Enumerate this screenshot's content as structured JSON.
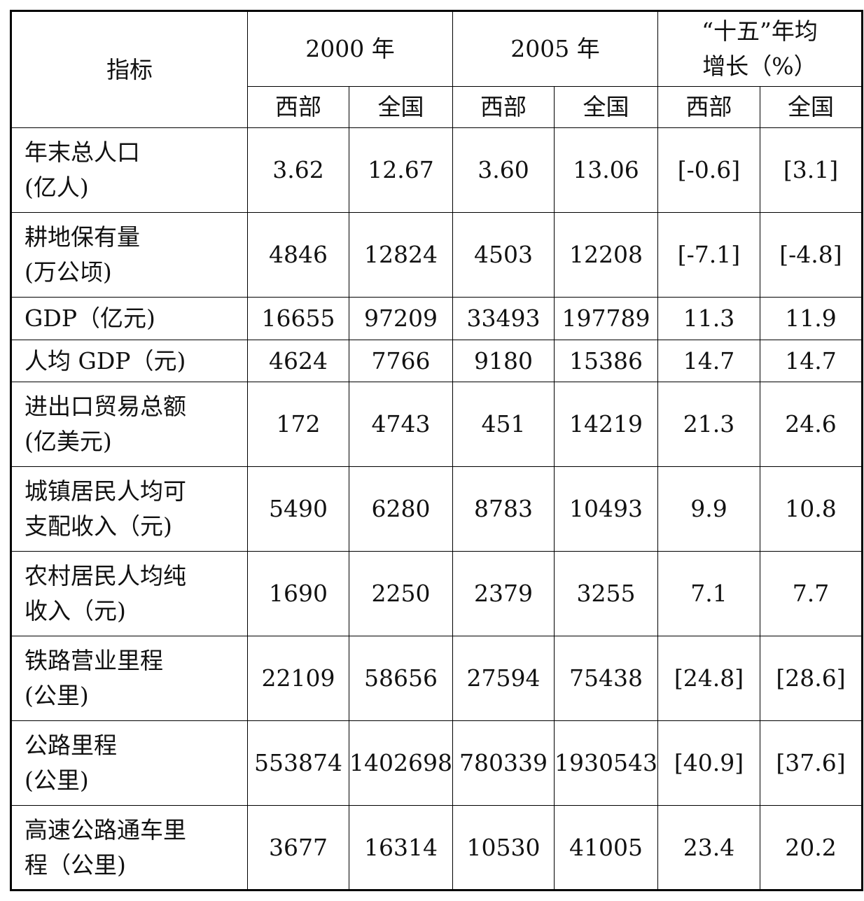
{
  "header": {
    "indicator": "指标",
    "year_2000": "2000 年",
    "year_2005": "2005 年",
    "growth": [
      "“十五”年均",
      "增长（%）"
    ],
    "subheaders": [
      "西部",
      "全国",
      "西部",
      "全国",
      "西部",
      "全国"
    ]
  },
  "rows": [
    {
      "label": [
        "年末总人口",
        "(亿人)"
      ],
      "values": [
        "3.62",
        "12.67",
        "3.60",
        "13.06",
        "[-0.6]",
        "[3.1]"
      ]
    },
    {
      "label": [
        "耕地保有量",
        "(万公顷)"
      ],
      "values": [
        "4846",
        "12824",
        "4503",
        "12208",
        "[-7.1]",
        "[-4.8]"
      ]
    },
    {
      "label": [
        "GDP（亿元)"
      ],
      "values": [
        "16655",
        "97209",
        "33493",
        "197789",
        "11.3",
        "11.9"
      ]
    },
    {
      "label": [
        "人均 GDP（元)"
      ],
      "values": [
        "4624",
        "7766",
        "9180",
        "15386",
        "14.7",
        "14.7"
      ]
    },
    {
      "label": [
        "进出口贸易总额",
        "(亿美元)"
      ],
      "values": [
        "172",
        "4743",
        "451",
        "14219",
        "21.3",
        "24.6"
      ]
    },
    {
      "label": [
        "城镇居民人均可",
        "支配收入（元)"
      ],
      "values": [
        "5490",
        "6280",
        "8783",
        "10493",
        "9.9",
        "10.8"
      ]
    },
    {
      "label": [
        "农村居民人均纯",
        "收入（元)"
      ],
      "values": [
        "1690",
        "2250",
        "2379",
        "3255",
        "7.1",
        "7.7"
      ]
    },
    {
      "label": [
        "铁路营业里程",
        "(公里)"
      ],
      "values": [
        "22109",
        "58656",
        "27594",
        "75438",
        "[24.8]",
        "[28.6]"
      ]
    },
    {
      "label": [
        "公路里程",
        "(公里)"
      ],
      "values": [
        "553874",
        "1402698",
        "780339",
        "1930543",
        "[40.9]",
        "[37.6]"
      ]
    },
    {
      "label": [
        "高速公路通车里",
        "程（公里)"
      ],
      "values": [
        "3677",
        "16314",
        "10530",
        "41005",
        "23.4",
        "20.2"
      ]
    }
  ]
}
